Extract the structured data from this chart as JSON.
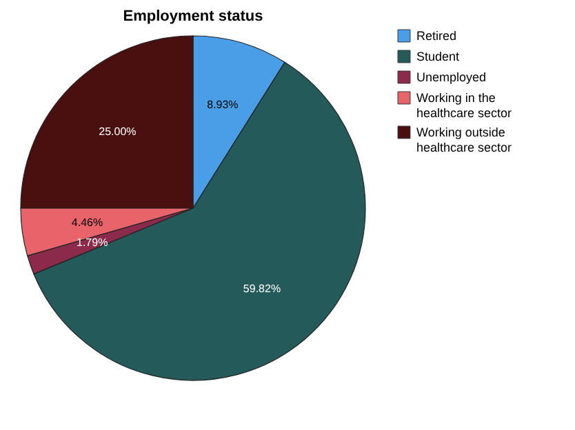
{
  "chart_data": {
    "type": "pie",
    "title": "Employment status",
    "categories": [
      "Retired",
      "Student",
      "Unemployed",
      "Working in the healthcare sector",
      "Working outside healthcare sector"
    ],
    "values": [
      8.93,
      59.82,
      1.79,
      4.46,
      25.0
    ],
    "colors": [
      "#4a9ee8",
      "#245a5a",
      "#8b2a4a",
      "#e8646a",
      "#4a0f0f"
    ],
    "value_labels": [
      "8.93%",
      "59.82%",
      "1.79%",
      "4.46%",
      "25.00%"
    ],
    "legend": "top right"
  }
}
